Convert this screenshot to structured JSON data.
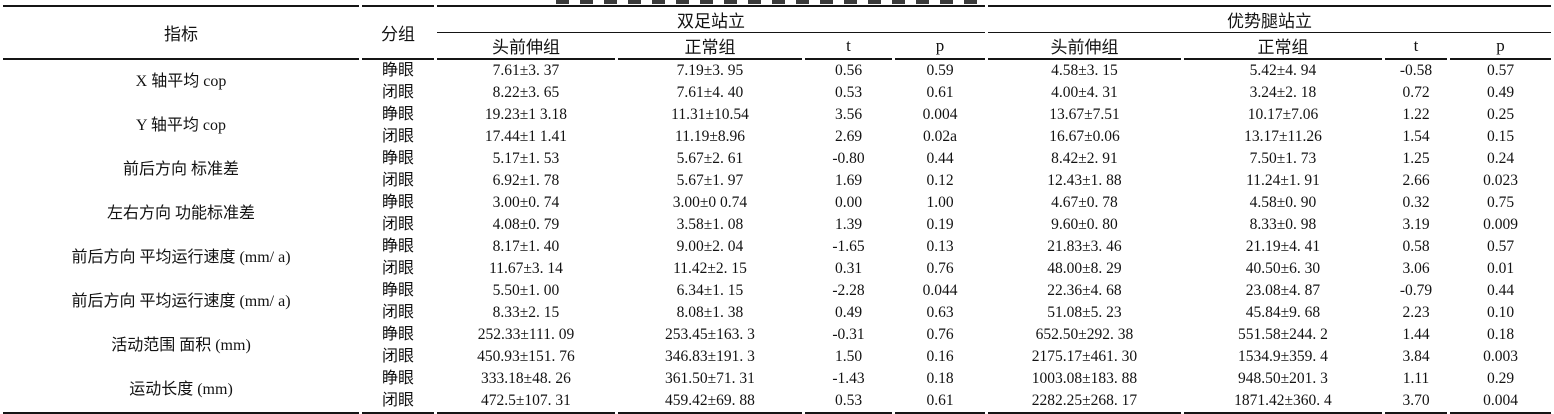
{
  "table": {
    "headers": {
      "indicator": "指标",
      "group": "分组"
    },
    "spanners": {
      "bipedal": "双足站立",
      "dominant": "优势腿站立"
    },
    "subheaders": [
      "头前伸组",
      "正常组",
      "t",
      "p"
    ],
    "indicators": [
      {
        "label": "X 轴平均 cop",
        "open": {
          "group": "睁眼",
          "c": [
            "7.61±3. 37",
            "7.19±3. 95",
            "0.56",
            "0.59",
            "4.58±3. 15",
            "5.42±4. 94",
            "-0.58",
            "0.57"
          ]
        },
        "closed": {
          "group": "闭眼",
          "c": [
            "8.22±3. 65",
            "7.61±4. 40",
            "0.53",
            "0.61",
            "4.00±4. 31",
            "3.24±2. 18",
            "0.72",
            "0.49"
          ]
        }
      },
      {
        "label": "Y 轴平均 cop",
        "open": {
          "group": "睁眼",
          "c": [
            "19.23±1 3.18",
            "11.31±10.54",
            "3.56",
            "0.004",
            "13.67±7.51",
            "10.17±7.06",
            "1.22",
            "0.25"
          ]
        },
        "closed": {
          "group": "闭眼",
          "c": [
            "17.44±1 1.41",
            "11.19±8.96",
            "2.69",
            "0.02a",
            "16.67±0.06",
            "13.17±11.26",
            "1.54",
            "0.15"
          ]
        }
      },
      {
        "label": "前后方向 标准差",
        "open": {
          "group": "睁眼",
          "c": [
            "5.17±1. 53",
            "5.67±2. 61",
            "-0.80",
            "0.44",
            "8.42±2. 91",
            "7.50±1. 73",
            "1.25",
            "0.24"
          ]
        },
        "closed": {
          "group": "闭眼",
          "c": [
            "6.92±1. 78",
            "5.67±1. 97",
            "1.69",
            "0.12",
            "12.43±1. 88",
            "11.24±1. 91",
            "2.66",
            "0.023"
          ]
        }
      },
      {
        "label": "左右方向 功能标准差",
        "open": {
          "group": "睁眼",
          "c": [
            "3.00±0. 74",
            "3.00±0 0.74",
            "0.00",
            "1.00",
            "4.67±0. 78",
            "4.58±0. 90",
            "0.32",
            "0.75"
          ]
        },
        "closed": {
          "group": "闭眼",
          "c": [
            "4.08±0. 79",
            "3.58±1. 08",
            "1.39",
            "0.19",
            "9.60±0. 80",
            "8.33±0. 98",
            "3.19",
            "0.009"
          ]
        }
      },
      {
        "label": "前后方向 平均运行速度 (mm/ a)",
        "open": {
          "group": "睁眼",
          "c": [
            "8.17±1. 40",
            "9.00±2. 04",
            "-1.65",
            "0.13",
            "21.83±3. 46",
            "21.19±4. 41",
            "0.58",
            "0.57"
          ]
        },
        "closed": {
          "group": "闭眼",
          "c": [
            "11.67±3. 14",
            "11.42±2. 15",
            "0.31",
            "0.76",
            "48.00±8. 29",
            "40.50±6. 30",
            "3.06",
            "0.01"
          ]
        }
      },
      {
        "label": "前后方向 平均运行速度 (mm/ a)",
        "open": {
          "group": "睁眼",
          "c": [
            "5.50±1. 00",
            "6.34±1. 15",
            "-2.28",
            "0.044",
            "22.36±4. 68",
            "23.08±4. 87",
            "-0.79",
            "0.44"
          ]
        },
        "closed": {
          "group": "闭眼",
          "c": [
            "8.33±2. 15",
            "8.08±1. 38",
            "0.49",
            "0.63",
            "51.08±5. 23",
            "45.84±9. 68",
            "2.23",
            "0.10"
          ]
        }
      },
      {
        "label": "活动范围 面积 (mm)",
        "open": {
          "group": "睁眼",
          "c": [
            "252.33±111. 09",
            "253.45±163. 3",
            "-0.31",
            "0.76",
            "652.50±292. 38",
            "551.58±244. 2",
            "1.44",
            "0.18"
          ]
        },
        "closed": {
          "group": "闭眼",
          "c": [
            "450.93±151. 76",
            "346.83±191. 3",
            "1.50",
            "0.16",
            "2175.17±461. 30",
            "1534.9±359. 4",
            "3.84",
            "0.003"
          ]
        }
      },
      {
        "label": "运动长度 (mm)",
        "open": {
          "group": "睁眼",
          "c": [
            "333.18±48. 26",
            "361.50±71. 31",
            "-1.43",
            "0.18",
            "1003.08±183. 88",
            "948.50±201. 3",
            "1.11",
            "0.29"
          ]
        },
        "closed": {
          "group": "闭眼",
          "c": [
            "472.5±107. 31",
            "459.42±69. 88",
            "0.53",
            "0.61",
            "2282.25±268. 17",
            "1871.42±360. 4",
            "3.70",
            "0.004"
          ]
        }
      }
    ]
  }
}
